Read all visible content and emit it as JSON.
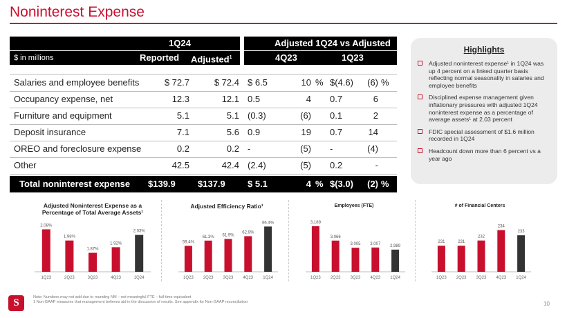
{
  "title": "Noninterest Expense",
  "table": {
    "group1": "1Q24",
    "group2": "Adjusted 1Q24 vs Adjusted",
    "unit_label": "$ in millions",
    "col_reported": "Reported",
    "col_adjusted": "Adjusted",
    "col_adjusted_sup": "1",
    "col_4q23": "4Q23",
    "col_1q23": "1Q23",
    "rows": [
      {
        "label": "Salaries and employee benefits",
        "reported": "$ 72.7",
        "adjusted": "$ 72.4",
        "q4_amt": "$ 6.5",
        "q4_pct": "10",
        "q4_pctsign": "%",
        "q1_amt": "$(4.6)",
        "q1_pct": "(6)",
        "q1_pctsign": "%"
      },
      {
        "label": "Occupancy expense, net",
        "reported": "12.3",
        "adjusted": "12.1",
        "q4_amt": "0.5",
        "q4_pct": "4",
        "q4_pctsign": "",
        "q1_amt": "0.7",
        "q1_pct": "6",
        "q1_pctsign": ""
      },
      {
        "label": "Furniture and equipment",
        "reported": "5.1",
        "adjusted": "5.1",
        "q4_amt": "(0.3)",
        "q4_pct": "(6)",
        "q4_pctsign": "",
        "q1_amt": "0.1",
        "q1_pct": "2",
        "q1_pctsign": ""
      },
      {
        "label": "Deposit insurance",
        "reported": "7.1",
        "adjusted": "5.6",
        "q4_amt": "0.9",
        "q4_pct": "19",
        "q4_pctsign": "",
        "q1_amt": "0.7",
        "q1_pct": "14",
        "q1_pctsign": ""
      },
      {
        "label": "OREO and foreclosure expense",
        "reported": "0.2",
        "adjusted": "0.2",
        "q4_amt": "-",
        "q4_pct": "(5)",
        "q4_pctsign": "",
        "q1_amt": "-",
        "q1_pct": "(4)",
        "q1_pctsign": ""
      },
      {
        "label": "Other",
        "reported": "42.5",
        "adjusted": "42.4",
        "q4_amt": "(2.4)",
        "q4_pct": "(5)",
        "q4_pctsign": "",
        "q1_amt": "0.2",
        "q1_pct": "-",
        "q1_pctsign": ""
      }
    ],
    "total": {
      "label": "Total noninterest expense",
      "reported": "$139.9",
      "adjusted": "$137.9",
      "q4_amt": "$ 5.1",
      "q4_pct": "4",
      "q4_pctsign": "%",
      "q1_amt": "$(3.0)",
      "q1_pct": "(2)",
      "q1_pctsign": "%"
    }
  },
  "highlights": {
    "title": "Highlights",
    "items": [
      "Adjusted noninterest expense¹ in 1Q24 was up 4 percent on a linked quarter basis reflecting normal seasonality in salaries and employee benefits",
      "Disciplined expense management given inflationary pressures with adjusted 1Q24 noninterest expense as a percentage of average assets¹ at 2.03 percent",
      "FDIC special assessment of $1.6 million recorded in 1Q24",
      "Headcount down more than 6 percent vs a year ago"
    ]
  },
  "chart_data": [
    {
      "type": "bar",
      "title": "Adjusted Noninterest Expense as a Percentage of Total Average Assets¹",
      "title_lines": [
        "Adjusted Noninterest Expense as a",
        "Percentage of Total Average Assets¹"
      ],
      "categories": [
        "1Q23",
        "2Q23",
        "3Q23",
        "4Q23",
        "1Q24"
      ],
      "values": [
        2.08,
        1.98,
        1.87,
        1.92,
        2.03
      ],
      "labels": [
        "2.08%",
        "1.98%",
        "1.87%",
        "1.92%",
        "2.03%"
      ],
      "ylim": [
        1.7,
        2.12
      ],
      "colors": [
        "#c8102e",
        "#c8102e",
        "#c8102e",
        "#c8102e",
        "#333333"
      ]
    },
    {
      "type": "bar",
      "title": "Adjusted Efficiency Ratio¹",
      "title_lines": [
        "Adjusted Efficiency Ratio¹"
      ],
      "categories": [
        "1Q23",
        "2Q23",
        "3Q23",
        "4Q23",
        "1Q24"
      ],
      "values": [
        59.4,
        61.3,
        61.9,
        62.9,
        66.4
      ],
      "labels": [
        "59.4%",
        "61.3%",
        "61.9%",
        "62.9%",
        "66.4%"
      ],
      "ylim": [
        50,
        67
      ],
      "colors": [
        "#c8102e",
        "#c8102e",
        "#c8102e",
        "#c8102e",
        "#333333"
      ]
    },
    {
      "type": "bar",
      "title": "Employees (FTE)",
      "title_lines": [
        "Employees (FTE)"
      ],
      "categories": [
        "1Q23",
        "2Q23",
        "3Q23",
        "4Q23",
        "1Q24"
      ],
      "values": [
        3189,
        3066,
        3005,
        3007,
        2989
      ],
      "labels": [
        "3,189",
        "3,066",
        "3,005",
        "3,007",
        "2,989"
      ],
      "ylim": [
        2800,
        3200
      ],
      "colors": [
        "#c8102e",
        "#c8102e",
        "#c8102e",
        "#c8102e",
        "#333333"
      ]
    },
    {
      "type": "bar",
      "title": "# of Financial Centers",
      "title_lines": [
        "# of Financial Centers"
      ],
      "categories": [
        "1Q23",
        "2Q23",
        "3Q23",
        "4Q23",
        "1Q24"
      ],
      "values": [
        231,
        231,
        232,
        234,
        233
      ],
      "labels": [
        "231",
        "231",
        "232",
        "234",
        "233"
      ],
      "ylim": [
        226,
        235
      ],
      "colors": [
        "#c8102e",
        "#c8102e",
        "#c8102e",
        "#c8102e",
        "#333333"
      ]
    }
  ],
  "footnote": {
    "line1": "Note: Numbers may not add due to rounding   NM – not meaningful   FTE – full-time equivalent",
    "line2": "1   Non-GAAP measures that management believes aid in the discussion of results. See appendix for Non-GAAP reconciliation"
  },
  "page_number": "10",
  "logo_text": "S"
}
